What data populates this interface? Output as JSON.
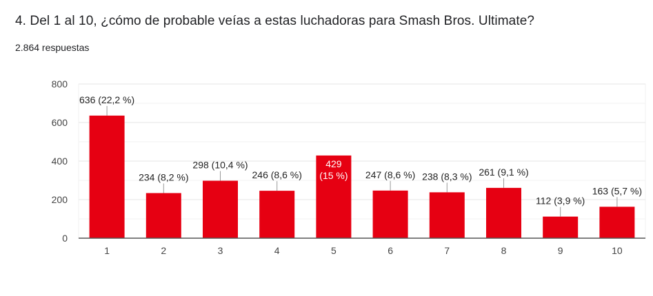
{
  "question": {
    "title": "4. Del 1 al 10, ¿cómo de probable veías a estas luchadoras para Smash Bros. Ultimate?",
    "response_count": "2.864 respuestas"
  },
  "colors": {
    "bar": "#e60012",
    "grid_major": "#e6e6e6",
    "grid_minor": "#f2f2f2",
    "axis": "#555555",
    "leader": "#999999"
  },
  "chart_data": {
    "type": "bar",
    "title": "4. Del 1 al 10, ¿cómo de probable veías a estas luchadoras para Smash Bros. Ultimate?",
    "xlabel": "",
    "ylabel": "",
    "categories": [
      "1",
      "2",
      "3",
      "4",
      "5",
      "6",
      "7",
      "8",
      "9",
      "10"
    ],
    "values": [
      636,
      234,
      298,
      246,
      429,
      247,
      238,
      261,
      112,
      163
    ],
    "percentages": [
      "22,2 %",
      "8,2 %",
      "10,4 %",
      "8,6 %",
      "15 %",
      "8,6 %",
      "8,3 %",
      "9,1 %",
      "3,9 %",
      "5,7 %"
    ],
    "data_labels": [
      "636 (22,2 %)",
      "234 (8,2 %)",
      "298 (10,4 %)",
      "246 (8,6 %)",
      "429 (15 %)",
      "247 (8,6 %)",
      "238 (8,3 %)",
      "261 (9,1 %)",
      "112 (3,9 %)",
      "163 (5,7 %)"
    ],
    "label_inside": [
      false,
      false,
      false,
      false,
      true,
      false,
      false,
      false,
      false,
      false
    ],
    "ylim": [
      0,
      800
    ],
    "yticks": [
      0,
      200,
      400,
      600,
      800
    ],
    "ytick_labels": [
      "0",
      "200",
      "400",
      "600",
      "800"
    ],
    "minor_gridlines": [
      100,
      300,
      500,
      700
    ],
    "grid": true,
    "legend": "none"
  }
}
